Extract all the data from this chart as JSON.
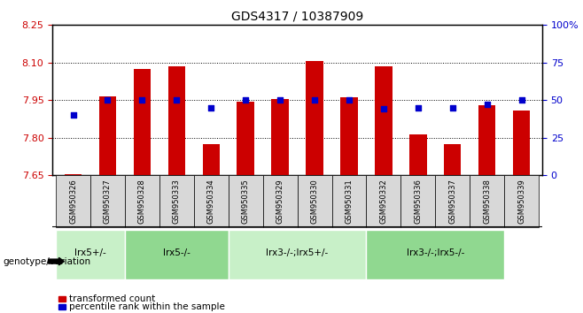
{
  "title": "GDS4317 / 10387909",
  "samples": [
    "GSM950326",
    "GSM950327",
    "GSM950328",
    "GSM950333",
    "GSM950334",
    "GSM950335",
    "GSM950329",
    "GSM950330",
    "GSM950331",
    "GSM950332",
    "GSM950336",
    "GSM950337",
    "GSM950338",
    "GSM950339"
  ],
  "bar_values": [
    7.655,
    7.965,
    8.075,
    8.085,
    7.775,
    7.945,
    7.955,
    8.105,
    7.96,
    8.085,
    7.815,
    7.775,
    7.93,
    7.91
  ],
  "percentile_values": [
    40,
    50,
    50,
    50,
    45,
    50,
    50,
    50,
    50,
    44,
    45,
    45,
    47,
    50
  ],
  "ymin": 7.65,
  "ymax": 8.25,
  "y_ticks": [
    7.65,
    7.8,
    7.95,
    8.1,
    8.25
  ],
  "right_yticks": [
    0,
    25,
    50,
    75,
    100
  ],
  "right_ytick_labels": [
    "0",
    "25",
    "50",
    "75",
    "100%"
  ],
  "bar_color": "#cc0000",
  "dot_color": "#0000cc",
  "groups": [
    {
      "label": "lrx5+/-",
      "start": 0,
      "end": 2,
      "color": "#c8f0c8"
    },
    {
      "label": "lrx5-/-",
      "start": 2,
      "end": 5,
      "color": "#90d890"
    },
    {
      "label": "lrx3-/-;lrx5+/-",
      "start": 5,
      "end": 9,
      "color": "#c8f0c8"
    },
    {
      "label": "lrx3-/-;lrx5-/-",
      "start": 9,
      "end": 13,
      "color": "#90d890"
    }
  ],
  "genotype_label": "genotype/variation",
  "legend_bar_label": "transformed count",
  "legend_dot_label": "percentile rank within the sample",
  "xlabel_color": "#cc0000",
  "ylabel_color": "#0000cc",
  "background_color": "#ffffff",
  "plot_bg_color": "#ffffff",
  "bar_width": 0.5,
  "grid_lines": [
    7.8,
    7.95,
    8.1
  ],
  "sample_label_color": "#d8d8d8"
}
